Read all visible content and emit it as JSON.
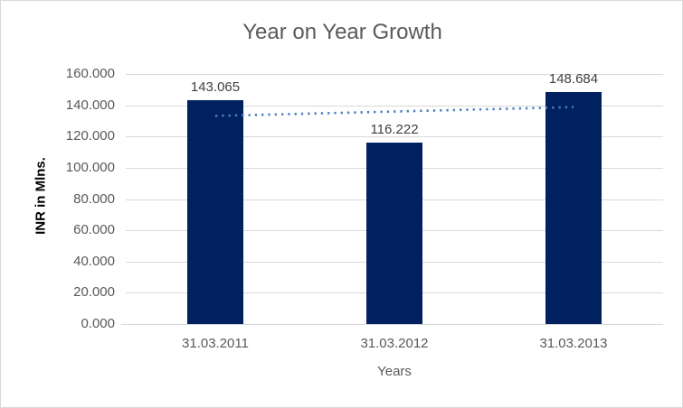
{
  "chart_data": {
    "type": "bar",
    "title": "Year on Year Growth",
    "xlabel": "Years",
    "ylabel": "INR in Mlns.",
    "categories": [
      "31.03.2011",
      "31.03.2012",
      "31.03.2013"
    ],
    "series": [
      {
        "name": "INR in Mlns.",
        "values": [
          143.065,
          116.222,
          148.684
        ]
      }
    ],
    "data_labels": [
      "143.065",
      "116.222",
      "148.684"
    ],
    "ylim": [
      0,
      160
    ],
    "ytick_step": 20,
    "ytick_labels": [
      "0.000",
      "20.000",
      "40.000",
      "60.000",
      "80.000",
      "100.000",
      "120.000",
      "140.000",
      "160.000"
    ],
    "grid": true,
    "legend": false,
    "trendline": {
      "type": "linear",
      "style": "dotted",
      "start_value": 133.19,
      "end_value": 138.81
    },
    "colors": {
      "bar": "#002060",
      "trendline": "#4C7FC0",
      "gridline": "#D9D9D9",
      "axis_text": "#595959",
      "title_text": "#595959",
      "data_label_text": "#404040",
      "y_title_text": "#000000",
      "border": "#D9D9D9",
      "background": "#FFFFFF"
    }
  }
}
